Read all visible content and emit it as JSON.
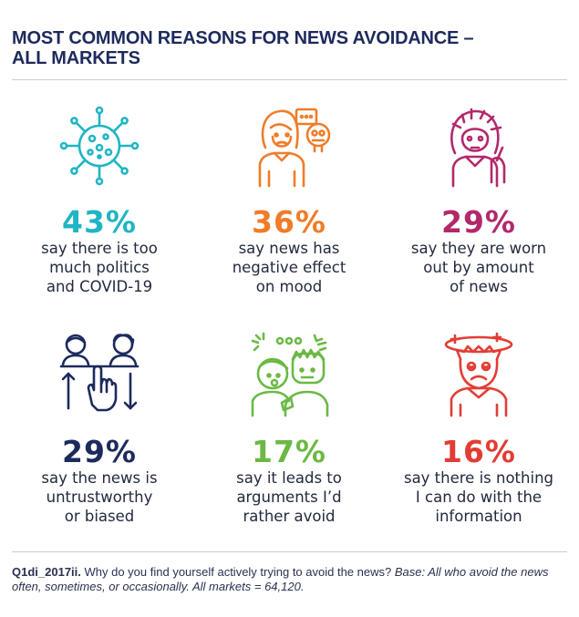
{
  "title": {
    "line1": "MOST COMMON REASONS FOR NEWS AVOIDANCE –",
    "line2": "ALL MARKETS"
  },
  "items": [
    {
      "pct": "43%",
      "color": "#1fb5c4",
      "icon": "virus-icon",
      "lines": [
        "say there is too",
        "much politics",
        "and COVID-19"
      ]
    },
    {
      "pct": "36%",
      "color": "#f07c28",
      "icon": "upset-person-icon",
      "lines": [
        "say news has",
        "negative effect",
        "on mood"
      ]
    },
    {
      "pct": "29%",
      "color": "#b3286b",
      "icon": "exhausted-person-icon",
      "lines": [
        "say they are worn",
        "out by amount",
        "of news"
      ]
    },
    {
      "pct": "29%",
      "color": "#1d2a5c",
      "icon": "distrust-icon",
      "lines": [
        "say the news is",
        "untrustworthy",
        "or biased"
      ]
    },
    {
      "pct": "17%",
      "color": "#6bb944",
      "icon": "arguing-people-icon",
      "lines": [
        "say it leads to",
        "arguments I’d",
        "rather avoid"
      ]
    },
    {
      "pct": "16%",
      "color": "#e23d35",
      "icon": "dizzy-person-icon",
      "lines": [
        "say there is nothing",
        "I can do with the",
        "information"
      ]
    }
  ],
  "footnote": {
    "code": "Q1di_2017ii.",
    "question": " Why do you find yourself actively trying to avoid the news? ",
    "base": "Base: All who avoid the news often, sometimes, or occasionally. All markets = 64,120."
  }
}
